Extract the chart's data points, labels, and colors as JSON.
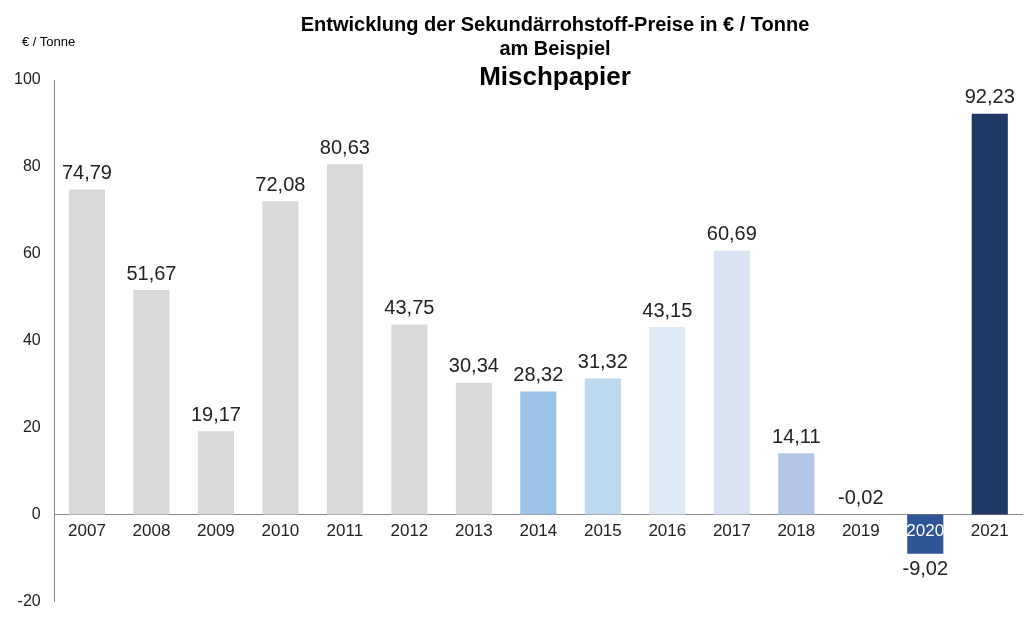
{
  "chart_data": {
    "type": "bar",
    "title": "Entwicklung der Sekundärrohstoff-Preise in € / Tonne\nam Beispiel",
    "subtitle": "Mischpapier",
    "ylabel": "€ / Tonne",
    "categories": [
      "2007",
      "2008",
      "2009",
      "2010",
      "2011",
      "2012",
      "2013",
      "2014",
      "2015",
      "2016",
      "2017",
      "2018",
      "2019",
      "2020",
      "2021"
    ],
    "values": [
      74.79,
      51.67,
      19.17,
      72.08,
      80.63,
      43.75,
      30.34,
      28.32,
      31.32,
      43.15,
      60.69,
      14.11,
      -0.02,
      -9.02,
      92.23
    ],
    "value_labels": [
      "74,79",
      "51,67",
      "19,17",
      "72,08",
      "80,63",
      "43,75",
      "30,34",
      "28,32",
      "31,32",
      "43,15",
      "60,69",
      "14,11",
      "-0,02",
      "-9,02",
      "92,23"
    ],
    "colors": [
      "#d9d9d9",
      "#d9d9d9",
      "#d9d9d9",
      "#d9d9d9",
      "#d9d9d9",
      "#d9d9d9",
      "#d9d9d9",
      "#9dc3e6",
      "#bdd7ee",
      "#deebf7",
      "#dae3f3",
      "#b4c7e7",
      "#bfbfbf",
      "#2f5597",
      "#203864"
    ],
    "ylim": [
      -20,
      100
    ],
    "yticks": [
      -20,
      0,
      20,
      40,
      60,
      80,
      100
    ],
    "grid": false,
    "legend": false
  }
}
